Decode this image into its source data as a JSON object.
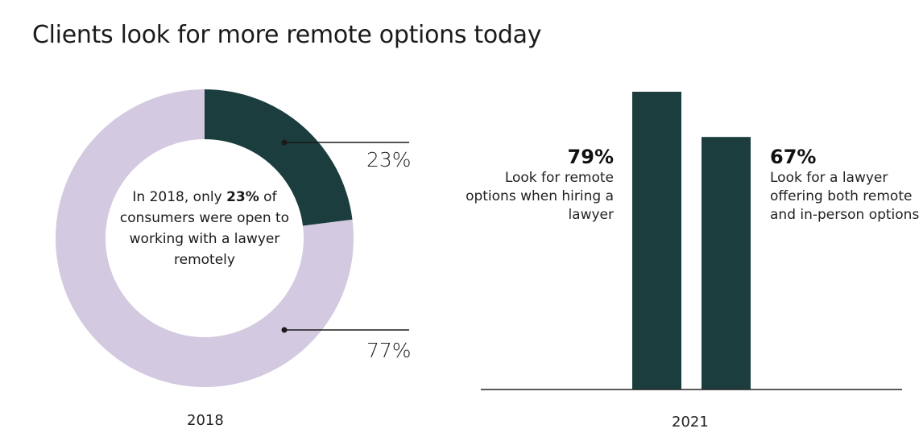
{
  "title": "Clients look for more remote options today",
  "chart_data": [
    {
      "type": "pie",
      "subtype": "donut",
      "label": "2018",
      "slices": [
        {
          "label": "23%",
          "value": 23,
          "color": "#1b3d3e"
        },
        {
          "label": "77%",
          "value": 77,
          "color": "#d3c9e0"
        }
      ],
      "center_text": {
        "prefix": "In 2018, only ",
        "bold": "23%",
        "suffix": " of consumers were open to working with a lawyer remotely"
      }
    },
    {
      "type": "bar",
      "label": "2021",
      "color": "#1b3d3e",
      "values": [
        79,
        67
      ],
      "annotations": [
        {
          "value_label": "79%",
          "text": "Look for remote options when hiring a lawyer"
        },
        {
          "value_label": "67%",
          "text": "Look for a lawyer offering both remote and in-person options"
        }
      ]
    }
  ]
}
